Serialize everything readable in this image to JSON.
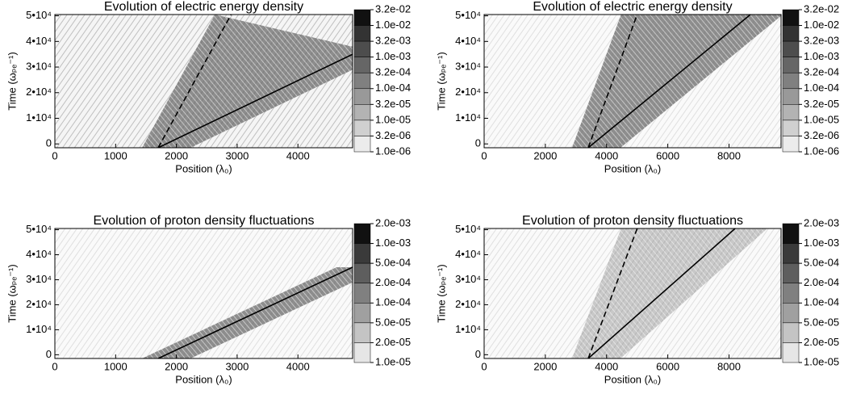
{
  "chart_data": [
    {
      "type": "contour",
      "title": "Evolution of electric energy density",
      "x_label": "Position (λ₀)",
      "y_label": "Time (ωₚₑ⁻¹)",
      "xlim": [
        0,
        4900
      ],
      "ylim": [
        -1500,
        50500
      ],
      "xticks": [
        0,
        1000,
        2000,
        3000,
        4000
      ],
      "yticks": [
        0,
        {
          "value": 10000,
          "label": "1•10⁴"
        },
        {
          "value": 20000,
          "label": "2•10⁴"
        },
        {
          "value": 30000,
          "label": "3•10⁴"
        },
        {
          "value": 40000,
          "label": "4•10⁴"
        },
        {
          "value": 50000,
          "label": "5•10⁴"
        }
      ],
      "colorbar": [
        {
          "value": 0.032,
          "label": "3.2e-02"
        },
        {
          "value": 0.01,
          "label": "1.0e-02"
        },
        {
          "value": 0.0032,
          "label": "3.2e-03"
        },
        {
          "value": 0.001,
          "label": "1.0e-03"
        },
        {
          "value": 0.00032,
          "label": "3.2e-04"
        },
        {
          "value": 0.0001,
          "label": "1.0e-04"
        },
        {
          "value": 3.2e-05,
          "label": "3.2e-05"
        },
        {
          "value": 1e-05,
          "label": "1.0e-05"
        },
        {
          "value": 3.2e-06,
          "label": "3.2e-06"
        },
        {
          "value": 1e-06,
          "label": "1.0e-06"
        }
      ],
      "colors": [
        "#111111",
        "#333333",
        "#4d4d4d",
        "#666666",
        "#808080",
        "#999999",
        "#b3b3b3",
        "#d0d0d0",
        "#ececec"
      ],
      "series": [
        {
          "color": "#000000",
          "dash": false,
          "x": [
            1700,
            4900
          ],
          "values": [
            -1500,
            35000
          ]
        },
        {
          "color": "#000000",
          "dash": true,
          "x": [
            1700,
            2900
          ],
          "values": [
            -1500,
            50500
          ]
        }
      ]
    },
    {
      "type": "contour",
      "title": "Evolution of electric energy density",
      "x_label": "Position (λ₀)",
      "y_label": "Time (ωₚₑ⁻¹)",
      "xlim": [
        0,
        9700
      ],
      "ylim": [
        -1500,
        50500
      ],
      "xticks": [
        0,
        2000,
        4000,
        6000,
        8000
      ],
      "yticks": [
        0,
        {
          "value": 10000,
          "label": "1•10⁴"
        },
        {
          "value": 20000,
          "label": "2•10⁴"
        },
        {
          "value": 30000,
          "label": "3•10⁴"
        },
        {
          "value": 40000,
          "label": "4•10⁴"
        },
        {
          "value": 50000,
          "label": "5•10⁴"
        }
      ],
      "colorbar": [
        {
          "value": 0.032,
          "label": "3.2e-02"
        },
        {
          "value": 0.01,
          "label": "1.0e-02"
        },
        {
          "value": 0.0032,
          "label": "3.2e-03"
        },
        {
          "value": 0.001,
          "label": "1.0e-03"
        },
        {
          "value": 0.00032,
          "label": "3.2e-04"
        },
        {
          "value": 0.0001,
          "label": "1.0e-04"
        },
        {
          "value": 3.2e-05,
          "label": "3.2e-05"
        },
        {
          "value": 1e-05,
          "label": "1.0e-05"
        },
        {
          "value": 3.2e-06,
          "label": "3.2e-06"
        },
        {
          "value": 1e-06,
          "label": "1.0e-06"
        }
      ],
      "colors": [
        "#111111",
        "#333333",
        "#4d4d4d",
        "#666666",
        "#808080",
        "#999999",
        "#b3b3b3",
        "#d0d0d0",
        "#ececec"
      ],
      "series": [
        {
          "color": "#000000",
          "dash": false,
          "x": [
            3400,
            8700
          ],
          "values": [
            -1500,
            50500
          ]
        },
        {
          "color": "#000000",
          "dash": true,
          "x": [
            3400,
            5000
          ],
          "values": [
            -1500,
            50500
          ]
        }
      ]
    },
    {
      "type": "contour",
      "title": "Evolution of proton density fluctuations",
      "x_label": "Position (λ₀)",
      "y_label": "Time (ωₚₑ⁻¹)",
      "xlim": [
        0,
        4900
      ],
      "ylim": [
        -1500,
        50500
      ],
      "xticks": [
        0,
        1000,
        2000,
        3000,
        4000
      ],
      "yticks": [
        0,
        {
          "value": 10000,
          "label": "1•10⁴"
        },
        {
          "value": 20000,
          "label": "2•10⁴"
        },
        {
          "value": 30000,
          "label": "3•10⁴"
        },
        {
          "value": 40000,
          "label": "4•10⁴"
        },
        {
          "value": 50000,
          "label": "5•10⁴"
        }
      ],
      "colorbar": [
        {
          "value": 0.002,
          "label": "2.0e-03"
        },
        {
          "value": 0.001,
          "label": "1.0e-03"
        },
        {
          "value": 0.0005,
          "label": "5.0e-04"
        },
        {
          "value": 0.0002,
          "label": "2.0e-04"
        },
        {
          "value": 0.0001,
          "label": "1.0e-04"
        },
        {
          "value": 5e-05,
          "label": "5.0e-05"
        },
        {
          "value": 2e-05,
          "label": "2.0e-05"
        },
        {
          "value": 1e-05,
          "label": "1.0e-05"
        }
      ],
      "colors": [
        "#111111",
        "#3a3a3a",
        "#5e5e5e",
        "#808080",
        "#a0a0a0",
        "#c4c4c4",
        "#e6e6e6"
      ],
      "series": [
        {
          "color": "#000000",
          "dash": false,
          "x": [
            1700,
            4900
          ],
          "values": [
            -1500,
            35000
          ]
        }
      ]
    },
    {
      "type": "contour",
      "title": "Evolution of proton density fluctuations",
      "x_label": "Position (λ₀)",
      "y_label": "Time (ωₚₑ⁻¹)",
      "xlim": [
        0,
        9700
      ],
      "ylim": [
        -1500,
        50500
      ],
      "xticks": [
        0,
        2000,
        4000,
        6000,
        8000
      ],
      "yticks": [
        0,
        {
          "value": 10000,
          "label": "1•10⁴"
        },
        {
          "value": 20000,
          "label": "2•10⁴"
        },
        {
          "value": 30000,
          "label": "3•10⁴"
        },
        {
          "value": 40000,
          "label": "4•10⁴"
        },
        {
          "value": 50000,
          "label": "5•10⁴"
        }
      ],
      "colorbar": [
        {
          "value": 0.002,
          "label": "2.0e-03"
        },
        {
          "value": 0.001,
          "label": "1.0e-03"
        },
        {
          "value": 0.0005,
          "label": "5.0e-04"
        },
        {
          "value": 0.0002,
          "label": "2.0e-04"
        },
        {
          "value": 0.0001,
          "label": "1.0e-04"
        },
        {
          "value": 5e-05,
          "label": "5.0e-05"
        },
        {
          "value": 2e-05,
          "label": "2.0e-05"
        },
        {
          "value": 1e-05,
          "label": "1.0e-05"
        }
      ],
      "colors": [
        "#111111",
        "#3a3a3a",
        "#5e5e5e",
        "#808080",
        "#a0a0a0",
        "#c4c4c4",
        "#e6e6e6"
      ],
      "series": [
        {
          "color": "#000000",
          "dash": false,
          "x": [
            3400,
            8200
          ],
          "values": [
            -1500,
            50500
          ]
        },
        {
          "color": "#000000",
          "dash": true,
          "x": [
            3400,
            5000
          ],
          "values": [
            -1500,
            50500
          ]
        }
      ]
    }
  ]
}
